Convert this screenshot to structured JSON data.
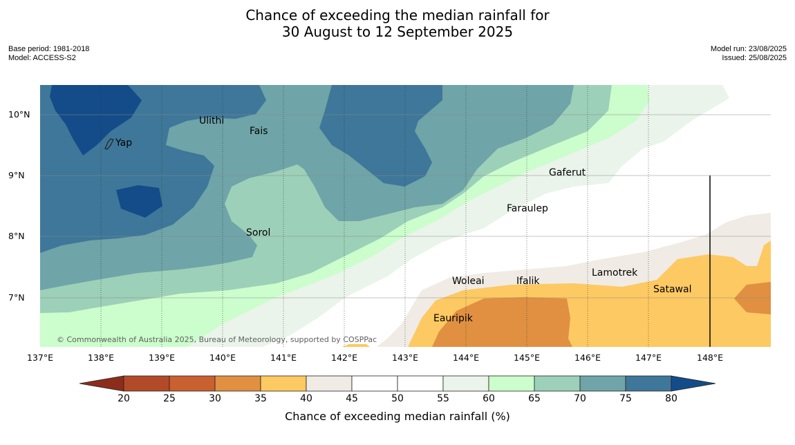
{
  "title": {
    "line1": "Chance of exceeding the median rainfall for",
    "line2": "30 August to 12 September 2025"
  },
  "meta_left": {
    "base_period": "Base period: 1981-2018",
    "model": "Model: ACCESS-S2"
  },
  "meta_right": {
    "model_run": "Model run: 23/08/2025",
    "issued": "Issued: 25/08/2025"
  },
  "lat_labels": [
    "10°N",
    "9°N",
    "8°N",
    "7°N"
  ],
  "lon_labels": [
    "137°E",
    "138°E",
    "139°E",
    "140°E",
    "141°E",
    "142°E",
    "143°E",
    "144°E",
    "145°E",
    "146°E",
    "147°E",
    "148°E"
  ],
  "places": [
    "Ulithi",
    "Fais",
    "Yap",
    "Gaferut",
    "Faraulep",
    "Sorol",
    "Lamotrek",
    "Woleai",
    "Ifalik",
    "Satawal",
    "Eauripik"
  ],
  "copyright": "© Commonwealth of Australia 2025, Bureau of Meteorology, supported by COSPPac",
  "colorbar": {
    "label": "Chance of exceeding median rainfall (%)",
    "ticks": [
      "20",
      "25",
      "30",
      "35",
      "40",
      "45",
      "50",
      "55",
      "60",
      "65",
      "70",
      "75",
      "80"
    ],
    "colors": [
      "#8c2d1b",
      "#b24a28",
      "#c8602f",
      "#e09040",
      "#fdc962",
      "#f0ebe5",
      "#ffffff",
      "#ffffff",
      "#eaf4ea",
      "#ccfdcc",
      "#9dd0b8",
      "#6fa4a8",
      "#3e7799",
      "#134c88"
    ]
  }
}
